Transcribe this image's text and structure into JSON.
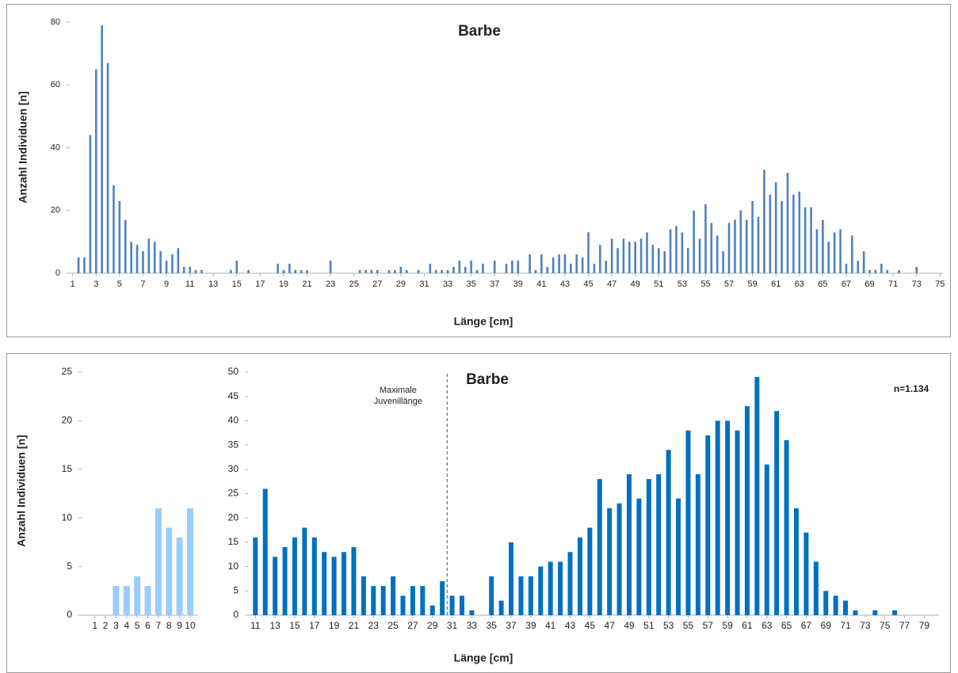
{
  "chart_data": [
    {
      "type": "bar",
      "title": "Barbe",
      "y_label": "Anzahl Individuen [n]",
      "x_label": "Länge [cm]",
      "color": "#4f81bd",
      "x": [
        1,
        1.5,
        2,
        2.5,
        3,
        3.5,
        4,
        4.5,
        5,
        5.5,
        6,
        6.5,
        7,
        7.5,
        8,
        8.5,
        9,
        9.5,
        10,
        10.5,
        11,
        11.5,
        12,
        12.5,
        13,
        13.5,
        14,
        14.5,
        15,
        15.5,
        16,
        16.5,
        17,
        17.5,
        18,
        18.5,
        19,
        19.5,
        20,
        20.5,
        21,
        21.5,
        22,
        22.5,
        23,
        23.5,
        24,
        24.5,
        25,
        25.5,
        26,
        26.5,
        27,
        27.5,
        28,
        28.5,
        29,
        29.5,
        30,
        30.5,
        31,
        31.5,
        32,
        32.5,
        33,
        33.5,
        34,
        34.5,
        35,
        35.5,
        36,
        36.5,
        37,
        37.5,
        38,
        38.5,
        39,
        39.5,
        40,
        40.5,
        41,
        41.5,
        42,
        42.5,
        43,
        43.5,
        44,
        44.5,
        45,
        45.5,
        46,
        46.5,
        47,
        47.5,
        48,
        48.5,
        49,
        49.5,
        50,
        50.5,
        51,
        51.5,
        52,
        52.5,
        53,
        53.5,
        54,
        54.5,
        55,
        55.5,
        56,
        56.5,
        57,
        57.5,
        58,
        58.5,
        59,
        59.5,
        60,
        60.5,
        61,
        61.5,
        62,
        62.5,
        63,
        63.5,
        64,
        64.5,
        65,
        65.5,
        66,
        66.5,
        67,
        67.5,
        68,
        68.5,
        69,
        69.5,
        70,
        70.5,
        71,
        71.5,
        72,
        72.5,
        73,
        73.5,
        74,
        74.5,
        75
      ],
      "values": [
        0,
        5,
        5,
        44,
        65,
        79,
        67,
        28,
        23,
        17,
        10,
        9,
        7,
        11,
        10,
        7,
        4,
        6,
        8,
        2,
        2,
        1,
        1,
        0,
        0,
        0,
        0,
        1,
        4,
        0,
        1,
        0,
        0,
        0,
        0,
        3,
        1,
        3,
        1,
        1,
        1,
        0,
        0,
        0,
        4,
        0,
        0,
        0,
        0,
        1,
        1,
        1,
        1,
        0,
        1,
        1,
        2,
        1,
        0,
        1,
        0,
        3,
        1,
        1,
        1,
        2,
        4,
        2,
        4,
        1,
        3,
        0,
        4,
        0,
        3,
        4,
        4,
        0,
        6,
        1,
        6,
        2,
        5,
        6,
        6,
        3,
        6,
        5,
        13,
        3,
        9,
        4,
        11,
        8,
        11,
        10,
        10,
        11,
        13,
        9,
        8,
        7,
        14,
        15,
        13,
        8,
        20,
        11,
        22,
        16,
        12,
        7,
        16,
        17,
        20,
        17,
        23,
        18,
        33,
        25,
        29,
        23,
        32,
        25,
        26,
        21,
        21,
        14,
        17,
        10,
        13,
        14,
        3,
        12,
        4,
        7,
        1,
        1,
        3,
        1,
        0,
        1,
        0,
        0,
        2,
        0,
        0,
        0,
        0
      ],
      "xlim": [
        0.75,
        75.25
      ],
      "xticks": [
        1,
        3,
        5,
        7,
        9,
        11,
        13,
        15,
        17,
        19,
        21,
        23,
        25,
        27,
        29,
        31,
        33,
        35,
        37,
        39,
        41,
        43,
        45,
        47,
        49,
        51,
        53,
        55,
        57,
        59,
        61,
        63,
        65,
        67,
        69,
        71,
        73,
        75
      ],
      "ylim": [
        0,
        80
      ],
      "yticks": [
        0,
        20,
        40,
        60,
        80
      ]
    },
    {
      "type": "bar",
      "y_label": "Anzahl Individuen [n]",
      "color": "#99ccff",
      "x": [
        1,
        2,
        3,
        4,
        5,
        6,
        7,
        8,
        9,
        10
      ],
      "values": [
        0,
        0,
        3,
        3,
        4,
        3,
        11,
        9,
        8,
        11
      ],
      "xlim": [
        -0.25,
        10.75
      ],
      "xticks": [
        1,
        2,
        3,
        4,
        5,
        6,
        7,
        8,
        9,
        10
      ],
      "ylim": [
        0,
        25
      ],
      "yticks": [
        0,
        5,
        10,
        15,
        20,
        25
      ]
    },
    {
      "type": "bar",
      "title": "Barbe",
      "x_label": "Länge [cm]",
      "note": "n=1.134",
      "color": "#0070c0",
      "annotation": {
        "lines": [
          "Maximale",
          "Juvenillänge"
        ],
        "x": 30.5
      },
      "x": [
        11,
        12,
        13,
        14,
        15,
        16,
        17,
        18,
        19,
        20,
        21,
        22,
        23,
        24,
        25,
        26,
        27,
        28,
        29,
        30,
        31,
        32,
        33,
        34,
        35,
        36,
        37,
        38,
        39,
        40,
        41,
        42,
        43,
        44,
        45,
        46,
        47,
        48,
        49,
        50,
        51,
        52,
        53,
        54,
        55,
        56,
        57,
        58,
        59,
        60,
        61,
        62,
        63,
        64,
        65,
        66,
        67,
        68,
        69,
        70,
        71,
        72,
        73,
        74,
        75,
        76,
        77,
        78,
        79,
        80
      ],
      "values": [
        16,
        26,
        12,
        14,
        16,
        18,
        16,
        13,
        12,
        13,
        14,
        8,
        6,
        6,
        8,
        4,
        6,
        6,
        2,
        7,
        4,
        4,
        1,
        0,
        8,
        3,
        15,
        8,
        8,
        10,
        11,
        11,
        13,
        16,
        18,
        28,
        22,
        23,
        29,
        24,
        28,
        29,
        34,
        24,
        38,
        29,
        37,
        40,
        40,
        38,
        43,
        49,
        31,
        42,
        36,
        22,
        17,
        11,
        5,
        4,
        3,
        1,
        0,
        1,
        0,
        1,
        0,
        0,
        0,
        0
      ],
      "xlim": [
        10.25,
        80.5
      ],
      "xticks": [
        11,
        13,
        15,
        17,
        19,
        21,
        23,
        25,
        27,
        29,
        31,
        33,
        35,
        37,
        39,
        41,
        43,
        45,
        47,
        49,
        51,
        53,
        55,
        57,
        59,
        61,
        63,
        65,
        67,
        69,
        71,
        73,
        75,
        77,
        79
      ],
      "ylim": [
        0,
        50
      ],
      "yticks": [
        0,
        5,
        10,
        15,
        20,
        25,
        30,
        35,
        40,
        45,
        50
      ]
    }
  ]
}
